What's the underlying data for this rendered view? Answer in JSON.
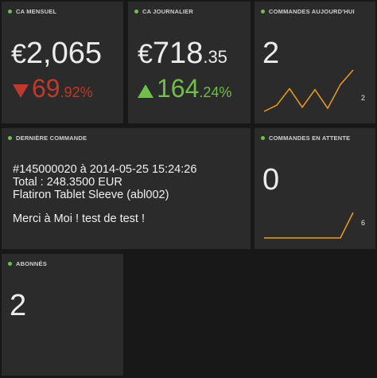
{
  "ca_mensuel": {
    "title": "CA MENSUEL",
    "currency": "€",
    "value_int": "2,065",
    "trend_int": "69",
    "trend_dec": ".92%",
    "trend_direction": "down",
    "trend_color": "#c0392b"
  },
  "ca_journalier": {
    "title": "CA JOURNALIER",
    "currency": "€",
    "value_int": "718",
    "value_dec": ".35",
    "trend_int": "164",
    "trend_dec": ".24%",
    "trend_direction": "up",
    "trend_color": "#6fbf4a"
  },
  "commandes_aujourdhui": {
    "title": "COMMANDES AUJOURD'HUI",
    "value": "2",
    "sparkline_max": "2",
    "sparkline_values": [
      0,
      0.3,
      1.1,
      0.2,
      1.05,
      0.15,
      1.3,
      2
    ],
    "sparkline_color": "#f39c12"
  },
  "derniere_commande": {
    "title": "DERNIÈRE COMMANDE",
    "line1": "#145000020 à 2014-05-25 15:24:26",
    "line2": "Total : 248.3500 EUR",
    "line3": "Flatiron Tablet Sleeve (abl002)",
    "line4": "Merci à Moi ! test de test !"
  },
  "commandes_en_attente": {
    "title": "COMMANDES EN ATTENTE",
    "value": "0",
    "sparkline_max": "6",
    "sparkline_values": [
      0,
      0,
      0,
      0,
      0,
      0,
      0,
      6
    ],
    "sparkline_color": "#f39c12"
  },
  "abonnes": {
    "title": "ABONNÉS",
    "value": "2"
  },
  "colors": {
    "tile_bg": "#2b2b2b",
    "status_dot": "#6fbf4a"
  }
}
